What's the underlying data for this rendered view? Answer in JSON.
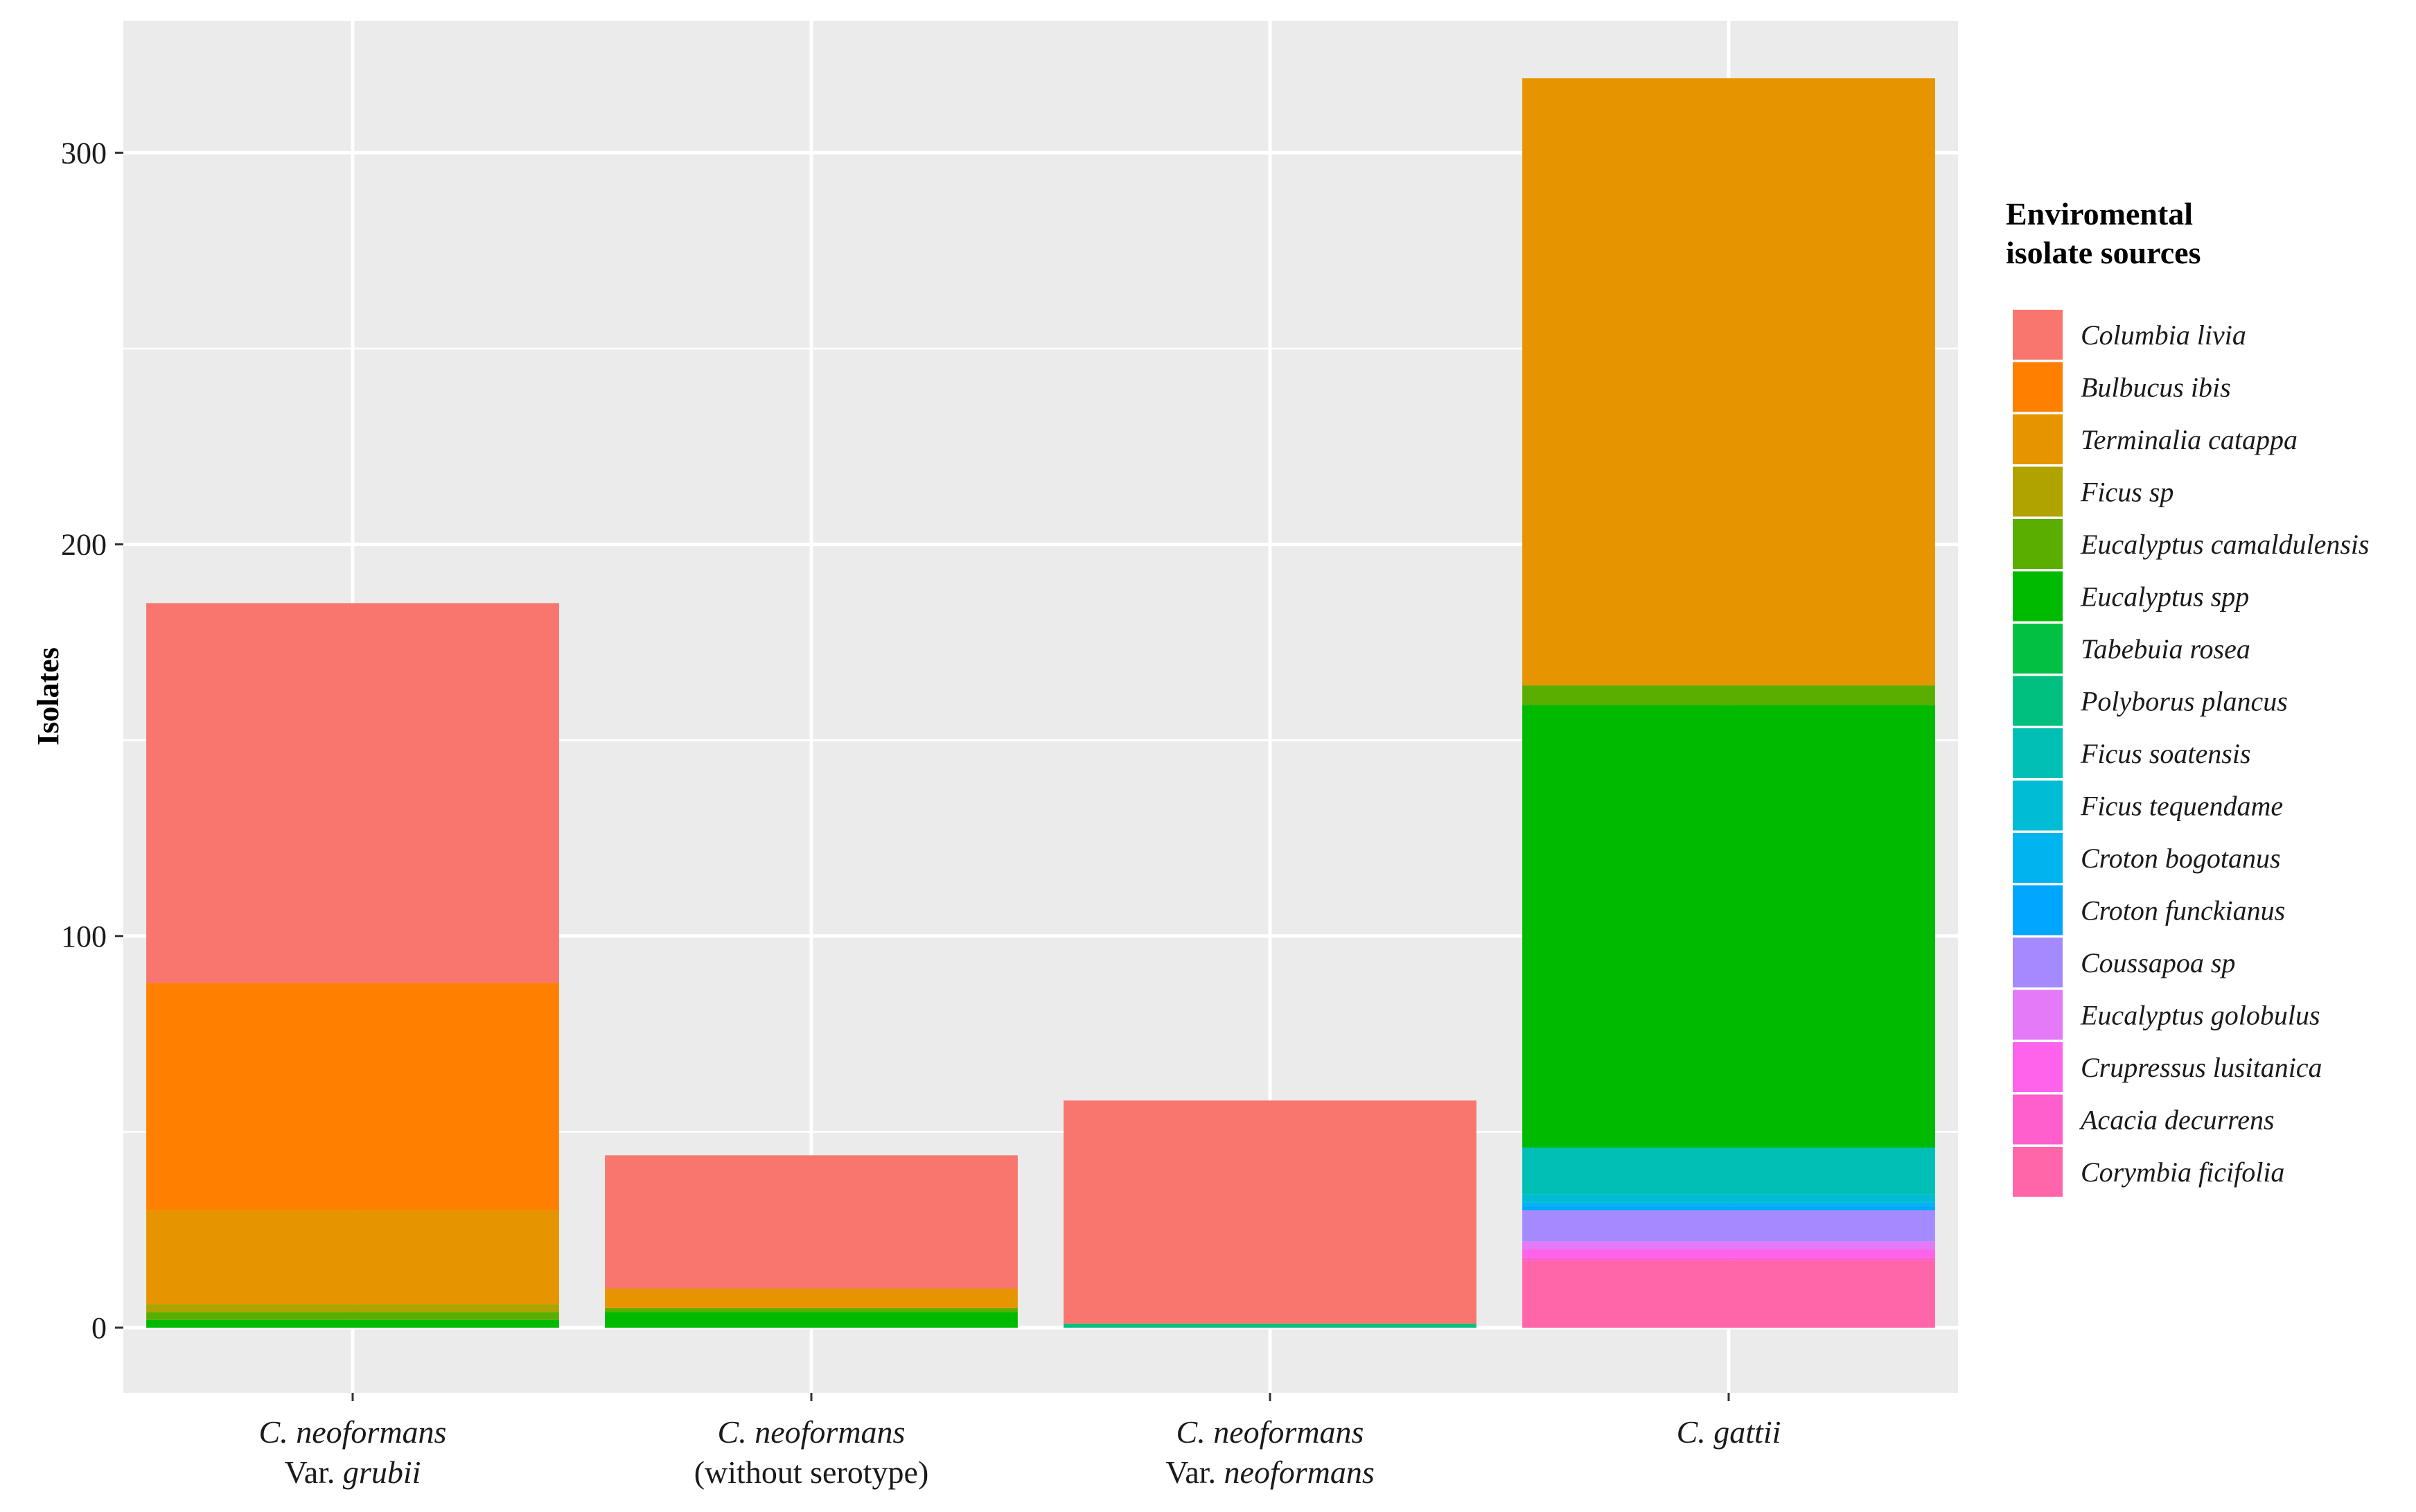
{
  "chart_data": {
    "type": "bar",
    "stacked": true,
    "ylabel": "Isolates",
    "ylim": [
      0,
      330
    ],
    "yticks": [
      0,
      100,
      200,
      300
    ],
    "grid": true,
    "legend_position": "right",
    "legend_title": [
      "Enviromental",
      "isolate sources"
    ],
    "categories": [
      [
        {
          "text": "C. neoformans",
          "italic": true
        },
        {
          "text": "Var. ",
          "italic": false,
          "tail": "grubii",
          "tail_italic": true
        }
      ],
      [
        {
          "text": "C. neoformans",
          "italic": true
        },
        {
          "text": "(without serotype)",
          "italic": false
        }
      ],
      [
        {
          "text": "C. neoformans",
          "italic": true
        },
        {
          "text": "Var. ",
          "italic": false,
          "tail": "neoformans",
          "tail_italic": true
        }
      ],
      [
        {
          "text": "C. gattii",
          "italic": true
        }
      ]
    ],
    "series": [
      {
        "name": "Columbia livia",
        "color": "#F8766D",
        "values": [
          97,
          34,
          57,
          0
        ]
      },
      {
        "name": "Bulbucus ibis",
        "color": "#FF8000",
        "values": [
          58,
          0,
          0,
          0
        ]
      },
      {
        "name": "Terminalia catappa",
        "color": "#E69500",
        "values": [
          24,
          5,
          0,
          155
        ]
      },
      {
        "name": "Ficus sp",
        "color": "#B0A300",
        "values": [
          2,
          0,
          0,
          0
        ]
      },
      {
        "name": "Eucalyptus camaldulensis",
        "color": "#5AAE00",
        "values": [
          2,
          1,
          0,
          5
        ]
      },
      {
        "name": "Eucalyptus spp",
        "color": "#00BA00",
        "values": [
          2,
          4,
          0,
          113
        ]
      },
      {
        "name": "Tabebuia rosea",
        "color": "#00C141",
        "values": [
          0,
          0,
          0,
          0
        ]
      },
      {
        "name": "Polyborus plancus",
        "color": "#00C07F",
        "values": [
          0,
          0,
          1,
          0
        ]
      },
      {
        "name": "Ficus soatensis",
        "color": "#00BFB5",
        "values": [
          0,
          0,
          0,
          12
        ]
      },
      {
        "name": "Ficus tequendame",
        "color": "#00BDD5",
        "values": [
          0,
          0,
          0,
          2
        ]
      },
      {
        "name": "Croton bogotanus",
        "color": "#00B4EF",
        "values": [
          0,
          0,
          0,
          1
        ]
      },
      {
        "name": "Croton funckianus",
        "color": "#00A6FF",
        "values": [
          0,
          0,
          0,
          1
        ]
      },
      {
        "name": "Coussapoa sp",
        "color": "#A58AFF",
        "values": [
          0,
          0,
          0,
          8
        ]
      },
      {
        "name": "Eucalyptus golobulus",
        "color": "#E47AF7",
        "values": [
          0,
          0,
          0,
          2
        ]
      },
      {
        "name": "Crupressus lusitanica",
        "color": "#FF63EB",
        "values": [
          0,
          0,
          0,
          2
        ]
      },
      {
        "name": "Acacia decurrens",
        "color": "#FF5FCC",
        "values": [
          0,
          0,
          0,
          1
        ]
      },
      {
        "name": "Corymbia ficifolia",
        "color": "#FF65A9",
        "values": [
          0,
          0,
          0,
          17
        ]
      }
    ]
  }
}
